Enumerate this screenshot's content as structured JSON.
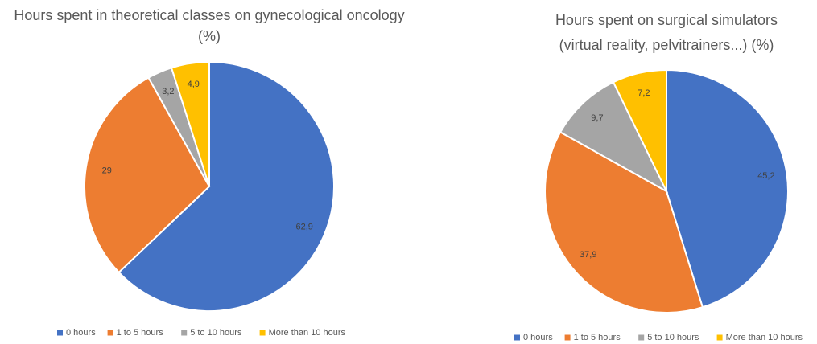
{
  "chart_data": [
    {
      "type": "pie",
      "title": [
        "Hours spent in theoretical classes on gynecological oncology",
        "(%)"
      ],
      "categories": [
        "0 hours",
        "1 to 5 hours",
        "5 to 10 hours",
        "More than 10 hours"
      ],
      "values": [
        62.9,
        29,
        3.2,
        4.9
      ],
      "value_labels": [
        "62,9",
        "29",
        "3,2",
        "4,9"
      ],
      "colors": [
        "#4472c4",
        "#ed7d31",
        "#a5a5a5",
        "#ffc000"
      ],
      "legend": "bottom"
    },
    {
      "type": "pie",
      "title": [
        "Hours spent on surgical simulators",
        "(virtual reality, pelvitrainers...) (%)"
      ],
      "categories": [
        "0 hours",
        "1 to 5 hours",
        "5 to 10 hours",
        "More than 10 hours"
      ],
      "values": [
        45.2,
        37.9,
        9.7,
        7.2
      ],
      "value_labels": [
        "45,2",
        "37,9",
        "9,7",
        "7,2"
      ],
      "colors": [
        "#4472c4",
        "#ed7d31",
        "#a5a5a5",
        "#ffc000"
      ],
      "legend": "bottom"
    }
  ]
}
